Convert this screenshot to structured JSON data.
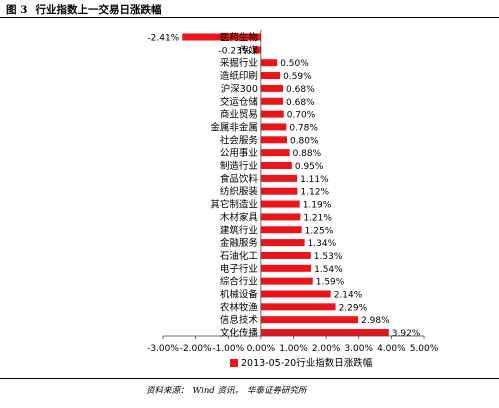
{
  "figure": {
    "number": "图 3",
    "title": "行业指数上一交易日涨跌幅",
    "source_label": "资料来源：",
    "source_text": "Wind 资讯，",
    "source_org": "华泰证券研究所"
  },
  "chart_data": {
    "type": "bar",
    "orientation": "horizontal",
    "categories": [
      "医药生物",
      "传媒",
      "采掘行业",
      "造纸印刷",
      "沪深300",
      "交运仓储",
      "商业贸易",
      "金属非金属",
      "社会服务",
      "公用事业",
      "制造行业",
      "食品饮料",
      "纺织服装",
      "其它制造业",
      "木材家具",
      "建筑行业",
      "金融服务",
      "石油化工",
      "电子行业",
      "综合行业",
      "机械设备",
      "农林牧渔",
      "信息技术",
      "文化传播"
    ],
    "series": [
      {
        "name": "2013-05-20行业指数日涨跌幅",
        "values": [
          -2.41,
          -0.23,
          0.5,
          0.59,
          0.68,
          0.68,
          0.7,
          0.78,
          0.8,
          0.88,
          0.95,
          1.11,
          1.12,
          1.19,
          1.21,
          1.25,
          1.34,
          1.53,
          1.54,
          1.59,
          2.14,
          2.29,
          2.98,
          3.92
        ]
      }
    ],
    "value_labels": [
      "-2.41%",
      "-0.23%",
      "0.50%",
      "0.59%",
      "0.68%",
      "0.68%",
      "0.70%",
      "0.78%",
      "0.80%",
      "0.88%",
      "0.95%",
      "1.11%",
      "1.12%",
      "1.19%",
      "1.21%",
      "1.25%",
      "1.34%",
      "1.53%",
      "1.54%",
      "1.59%",
      "2.14%",
      "2.29%",
      "2.98%",
      "3.92%"
    ],
    "x_ticks": [
      -3,
      -2,
      -1,
      0,
      1,
      2,
      3,
      4,
      5
    ],
    "x_tick_labels": [
      "-3.00%",
      "-2.00%",
      "-1.00%",
      "0.00%",
      "1.00%",
      "2.00%",
      "3.00%",
      "4.00%",
      "5.00%"
    ],
    "xlim": [
      -3,
      5
    ],
    "grid": false,
    "legend_position": "bottom",
    "bar_color": "#e8161b"
  }
}
